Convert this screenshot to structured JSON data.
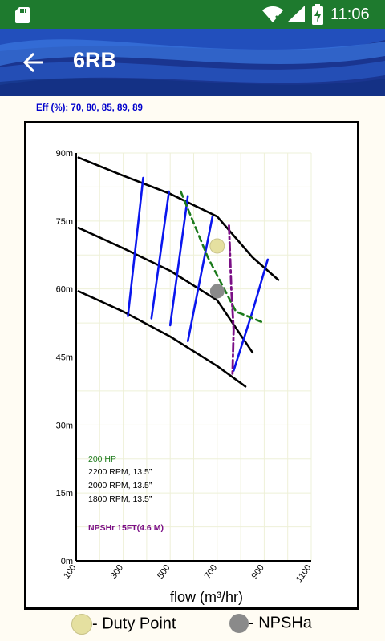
{
  "status_bar": {
    "time": "11:06"
  },
  "header": {
    "title": "6RB"
  },
  "efficiency_label": "Eff (%): 70, 80, 85, 89, 89",
  "legend": {
    "duty_point": "- Duty Point",
    "npsha": "- NPSHa"
  },
  "colors": {
    "status_bar": "#1e7a2e",
    "app_bar": "#17338a",
    "efficiency": "#0000cc",
    "hp_line": "#1b7a1b",
    "npshr_line": "#7b0f86",
    "duty_point": "#e5e0a0",
    "npsha_point": "#8a8a8a"
  },
  "chart_data": {
    "type": "line",
    "xlabel": "flow (m³/hr)",
    "ylabel": "",
    "xlim": [
      100,
      1100
    ],
    "ylim": [
      0,
      90
    ],
    "x_ticks": [
      100,
      300,
      500,
      700,
      900,
      1100
    ],
    "y_ticks": [
      0,
      15,
      30,
      45,
      60,
      75,
      90
    ],
    "y_tick_labels": [
      "0m",
      "15m",
      "30m",
      "45m",
      "60m",
      "75m",
      "90m"
    ],
    "annotations": {
      "hp": "200 HP",
      "rpm": [
        "2200 RPM, 13.5”",
        "2000 RPM, 13.5”",
        "1800 RPM, 13.5”"
      ],
      "npshr": "NPSHr 15FT(4.6 M)"
    },
    "series": [
      {
        "curve": "rpm_2200",
        "values": [
          [
            110,
            89.0
          ],
          [
            300,
            85.0
          ],
          [
            500,
            81.0
          ],
          [
            700,
            76.0
          ],
          [
            850,
            67.0
          ],
          [
            960,
            62.0
          ]
        ]
      },
      {
        "curve": "rpm_2000",
        "values": [
          [
            110,
            73.5
          ],
          [
            300,
            69.0
          ],
          [
            500,
            64.0
          ],
          [
            700,
            57.5
          ],
          [
            850,
            46.0
          ]
        ]
      },
      {
        "curve": "rpm_1800",
        "values": [
          [
            110,
            59.5
          ],
          [
            300,
            55.0
          ],
          [
            500,
            49.5
          ],
          [
            700,
            43.0
          ],
          [
            820,
            38.5
          ]
        ]
      },
      {
        "curve": "efficiency_1",
        "values": [
          [
            320,
            54.0
          ],
          [
            385,
            84.5
          ]
        ]
      },
      {
        "curve": "efficiency_2",
        "values": [
          [
            420,
            53.5
          ],
          [
            495,
            81.5
          ]
        ]
      },
      {
        "curve": "efficiency_3",
        "values": [
          [
            500,
            52.0
          ],
          [
            575,
            80.5
          ]
        ]
      },
      {
        "curve": "efficiency_4",
        "values": [
          [
            575,
            48.5
          ],
          [
            680,
            76.0
          ]
        ]
      },
      {
        "curve": "efficiency_5",
        "values": [
          [
            770,
            42.0
          ],
          [
            850,
            55.0
          ],
          [
            915,
            66.5
          ]
        ]
      },
      {
        "curve": "hp_200",
        "values": [
          [
            545,
            81.5
          ],
          [
            660,
            67.0
          ],
          [
            780,
            55.0
          ],
          [
            900,
            52.5
          ]
        ]
      },
      {
        "curve": "npshr",
        "values": [
          [
            750,
            74.0
          ],
          [
            760,
            60.0
          ],
          [
            770,
            51.0
          ],
          [
            765,
            41.0
          ]
        ]
      }
    ],
    "points": [
      {
        "name": "Duty Point",
        "x": 700,
        "y": 69.5
      },
      {
        "name": "NPSHa",
        "x": 700,
        "y": 59.5
      }
    ]
  }
}
